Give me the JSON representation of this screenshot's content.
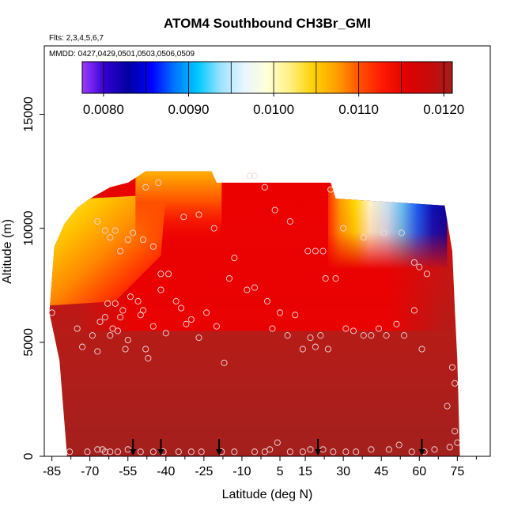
{
  "chart_data": {
    "type": "heatmap",
    "title": "ATOM4 Southbound CH3Br_GMI",
    "subtitle_flights": "Flts: 2,3,4,5,6,7",
    "subtitle_dates": "MMDD: 0427,0429,0501,0503,0506,0509",
    "xlabel": "Latitude (deg N)",
    "ylabel": "Altitude (m)",
    "xlim": [
      -88,
      88
    ],
    "ylim": [
      0,
      18000
    ],
    "x_ticks": [
      -85,
      -70,
      -55,
      -40,
      -25,
      -10,
      5,
      15,
      30,
      45,
      60,
      75
    ],
    "x_tick_labels": [
      "-85",
      "-70",
      "-55",
      "-40",
      "-25",
      "-10",
      "5",
      "15",
      "30",
      "45",
      "60",
      "75"
    ],
    "y_ticks": [
      0,
      5000,
      10000,
      15000
    ],
    "y_tick_labels": [
      "0",
      "5000",
      "10000",
      "15000"
    ],
    "colorbar": {
      "min": 0.00775,
      "max": 0.0121,
      "ticks": [
        0.008,
        0.009,
        0.01,
        0.011,
        0.012
      ],
      "tick_labels": [
        "0.0080",
        "0.0090",
        "0.0100",
        "0.0110",
        "0.0120"
      ],
      "colors": [
        "#9c3bff",
        "#3300d0",
        "#0000a0",
        "#0000ff",
        "#0077ff",
        "#00c8ff",
        "#9fe3ff",
        "#e8f6ff",
        "#ffffd8",
        "#fff080",
        "#ffd000",
        "#ffa000",
        "#ff5000",
        "#ff1800",
        "#e00000",
        "#c80a0a",
        "#a51c1c"
      ]
    },
    "arrows_latitude": [
      -53,
      -42,
      -19,
      20,
      61
    ],
    "samples": [
      [
        -85,
        6300
      ],
      [
        -75,
        5600
      ],
      [
        -73,
        4800
      ],
      [
        -69,
        5300
      ],
      [
        -67,
        4600
      ],
      [
        -66,
        5900
      ],
      [
        -64,
        6100
      ],
      [
        -63,
        6700
      ],
      [
        -62,
        5300
      ],
      [
        -61,
        5600
      ],
      [
        -60,
        6700
      ],
      [
        -59,
        5500
      ],
      [
        -58,
        6100
      ],
      [
        -57,
        6400
      ],
      [
        -56,
        4700
      ],
      [
        -55,
        5100
      ],
      [
        -54,
        7000
      ],
      [
        -51,
        6800
      ],
      [
        -50,
        6200
      ],
      [
        -49,
        6400
      ],
      [
        -48,
        4700
      ],
      [
        -47,
        4300
      ],
      [
        -45,
        5700
      ],
      [
        -42,
        7300
      ],
      [
        -40,
        5400
      ],
      [
        -36,
        6800
      ],
      [
        -34,
        6500
      ],
      [
        -32,
        5800
      ],
      [
        -30,
        6000
      ],
      [
        -27,
        5200
      ],
      [
        -24,
        6300
      ],
      [
        -20,
        5700
      ],
      [
        -17,
        4100
      ],
      [
        -15,
        7800
      ],
      [
        -8,
        7300
      ],
      [
        -5,
        7400
      ],
      [
        0,
        6800
      ],
      [
        2,
        5600
      ],
      [
        5,
        6300
      ],
      [
        8,
        5300
      ],
      [
        11,
        6200
      ],
      [
        14,
        4700
      ],
      [
        17,
        5200
      ],
      [
        19,
        4800
      ],
      [
        21,
        5300
      ],
      [
        24,
        4700
      ],
      [
        27,
        7800
      ],
      [
        31,
        5600
      ],
      [
        34,
        5500
      ],
      [
        38,
        5300
      ],
      [
        41,
        5300
      ],
      [
        44,
        5600
      ],
      [
        47,
        5300
      ],
      [
        51,
        5800
      ],
      [
        54,
        5300
      ],
      [
        58,
        6400
      ],
      [
        61,
        4700
      ],
      [
        -67,
        10300
      ],
      [
        -64,
        9900
      ],
      [
        -62,
        9600
      ],
      [
        -60,
        9900
      ],
      [
        -58,
        9000
      ],
      [
        -55,
        9500
      ],
      [
        -53,
        9800
      ],
      [
        -49,
        9500
      ],
      [
        -45,
        9200
      ],
      [
        -42,
        8000
      ],
      [
        -39,
        8000
      ],
      [
        -33,
        10500
      ],
      [
        -27,
        10600
      ],
      [
        -21,
        10000
      ],
      [
        -13,
        8700
      ],
      [
        -7,
        12300
      ],
      [
        -5,
        12300
      ],
      [
        -1,
        11800
      ],
      [
        3,
        10800
      ],
      [
        9,
        10300
      ],
      [
        16,
        9000
      ],
      [
        19,
        9000
      ],
      [
        22,
        9000
      ],
      [
        23,
        7800
      ],
      [
        25,
        11700
      ],
      [
        30,
        10000
      ],
      [
        38,
        9600
      ],
      [
        46,
        9800
      ],
      [
        53,
        9800
      ],
      [
        58,
        8500
      ],
      [
        60,
        8300
      ],
      [
        63,
        8000
      ],
      [
        -48,
        11800
      ],
      [
        -43,
        12000
      ],
      [
        -78,
        200
      ],
      [
        -71,
        200
      ],
      [
        -67,
        300
      ],
      [
        -65,
        300
      ],
      [
        -64,
        200
      ],
      [
        -62,
        200
      ],
      [
        -59,
        200
      ],
      [
        -55,
        300
      ],
      [
        -50,
        200
      ],
      [
        -45,
        200
      ],
      [
        -41,
        200
      ],
      [
        -35,
        200
      ],
      [
        -30,
        200
      ],
      [
        -26,
        200
      ],
      [
        -18,
        200
      ],
      [
        -13,
        200
      ],
      [
        -5,
        200
      ],
      [
        -1,
        200
      ],
      [
        1,
        300
      ],
      [
        4,
        600
      ],
      [
        9,
        200
      ],
      [
        14,
        200
      ],
      [
        17,
        300
      ],
      [
        22,
        300
      ],
      [
        26,
        200
      ],
      [
        31,
        200
      ],
      [
        35,
        200
      ],
      [
        41,
        300
      ],
      [
        48,
        300
      ],
      [
        52,
        500
      ],
      [
        57,
        200
      ],
      [
        62,
        200
      ],
      [
        66,
        300
      ],
      [
        72,
        400
      ],
      [
        75,
        600
      ],
      [
        74,
        1100
      ],
      [
        71,
        2200
      ],
      [
        74,
        3200
      ],
      [
        73,
        3900
      ]
    ]
  }
}
